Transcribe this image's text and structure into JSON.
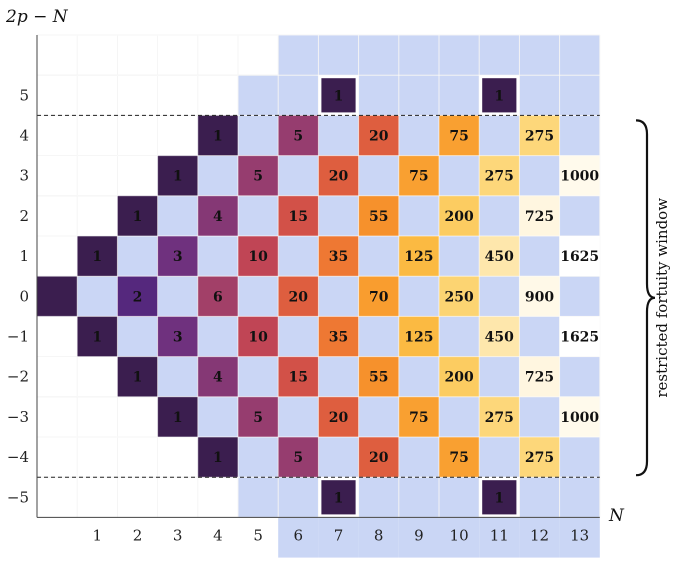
{
  "chart_data": {
    "type": "heatmap",
    "title": "",
    "xlabel": "N",
    "ylabel": "2p − N",
    "xlim": [
      0,
      13
    ],
    "ylim": [
      -5,
      5
    ],
    "x_ticks": [
      "1",
      "2",
      "3",
      "4",
      "5",
      "6",
      "7",
      "8",
      "9",
      "10",
      "11",
      "12",
      "13"
    ],
    "y_ticks": [
      "−5",
      "−4",
      "−3",
      "−2",
      "−1",
      "0",
      "1",
      "2",
      "3",
      "4",
      "5"
    ],
    "cells": [
      {
        "N": 0,
        "y": 0,
        "value": 1,
        "label": ""
      },
      {
        "N": 1,
        "y": 1,
        "value": 1,
        "label": "1"
      },
      {
        "N": 1,
        "y": -1,
        "value": 1,
        "label": "1"
      },
      {
        "N": 2,
        "y": 2,
        "value": 1,
        "label": "1"
      },
      {
        "N": 2,
        "y": 0,
        "value": 2,
        "label": "2"
      },
      {
        "N": 2,
        "y": -2,
        "value": 1,
        "label": "1"
      },
      {
        "N": 3,
        "y": 3,
        "value": 1,
        "label": "1"
      },
      {
        "N": 3,
        "y": 1,
        "value": 3,
        "label": "3"
      },
      {
        "N": 3,
        "y": -1,
        "value": 3,
        "label": "3"
      },
      {
        "N": 3,
        "y": -3,
        "value": 1,
        "label": "1"
      },
      {
        "N": 4,
        "y": 4,
        "value": 1,
        "label": "1"
      },
      {
        "N": 4,
        "y": 2,
        "value": 4,
        "label": "4"
      },
      {
        "N": 4,
        "y": 0,
        "value": 6,
        "label": "6"
      },
      {
        "N": 4,
        "y": -2,
        "value": 4,
        "label": "4"
      },
      {
        "N": 4,
        "y": -4,
        "value": 1,
        "label": "1"
      },
      {
        "N": 5,
        "y": 3,
        "value": 5,
        "label": "5"
      },
      {
        "N": 5,
        "y": 1,
        "value": 10,
        "label": "10"
      },
      {
        "N": 5,
        "y": -1,
        "value": 10,
        "label": "10"
      },
      {
        "N": 5,
        "y": -3,
        "value": 5,
        "label": "5"
      },
      {
        "N": 6,
        "y": 4,
        "value": 5,
        "label": "5"
      },
      {
        "N": 6,
        "y": 2,
        "value": 15,
        "label": "15"
      },
      {
        "N": 6,
        "y": 0,
        "value": 20,
        "label": "20"
      },
      {
        "N": 6,
        "y": -2,
        "value": 15,
        "label": "15"
      },
      {
        "N": 6,
        "y": -4,
        "value": 5,
        "label": "5"
      },
      {
        "N": 7,
        "y": 5,
        "value": 1,
        "label": "1",
        "boxed": true
      },
      {
        "N": 7,
        "y": 3,
        "value": 20,
        "label": "20"
      },
      {
        "N": 7,
        "y": 1,
        "value": 35,
        "label": "35"
      },
      {
        "N": 7,
        "y": -1,
        "value": 35,
        "label": "35"
      },
      {
        "N": 7,
        "y": -3,
        "value": 20,
        "label": "20"
      },
      {
        "N": 7,
        "y": -5,
        "value": 1,
        "label": "1",
        "boxed": true
      },
      {
        "N": 8,
        "y": 4,
        "value": 20,
        "label": "20"
      },
      {
        "N": 8,
        "y": 2,
        "value": 55,
        "label": "55"
      },
      {
        "N": 8,
        "y": 0,
        "value": 70,
        "label": "70"
      },
      {
        "N": 8,
        "y": -2,
        "value": 55,
        "label": "55"
      },
      {
        "N": 8,
        "y": -4,
        "value": 20,
        "label": "20"
      },
      {
        "N": 9,
        "y": 3,
        "value": 75,
        "label": "75"
      },
      {
        "N": 9,
        "y": 1,
        "value": 125,
        "label": "125"
      },
      {
        "N": 9,
        "y": -1,
        "value": 125,
        "label": "125"
      },
      {
        "N": 9,
        "y": -3,
        "value": 75,
        "label": "75"
      },
      {
        "N": 10,
        "y": 4,
        "value": 75,
        "label": "75"
      },
      {
        "N": 10,
        "y": 2,
        "value": 200,
        "label": "200"
      },
      {
        "N": 10,
        "y": 0,
        "value": 250,
        "label": "250"
      },
      {
        "N": 10,
        "y": -2,
        "value": 200,
        "label": "200"
      },
      {
        "N": 10,
        "y": -4,
        "value": 75,
        "label": "75"
      },
      {
        "N": 11,
        "y": 5,
        "value": 1,
        "label": "1",
        "boxed": true
      },
      {
        "N": 11,
        "y": 3,
        "value": 275,
        "label": "275"
      },
      {
        "N": 11,
        "y": 1,
        "value": 450,
        "label": "450"
      },
      {
        "N": 11,
        "y": -1,
        "value": 450,
        "label": "450"
      },
      {
        "N": 11,
        "y": -3,
        "value": 275,
        "label": "275"
      },
      {
        "N": 11,
        "y": -5,
        "value": 1,
        "label": "1",
        "boxed": true
      },
      {
        "N": 12,
        "y": 4,
        "value": 275,
        "label": "275"
      },
      {
        "N": 12,
        "y": 2,
        "value": 725,
        "label": "725"
      },
      {
        "N": 12,
        "y": 0,
        "value": 900,
        "label": "900"
      },
      {
        "N": 12,
        "y": -2,
        "value": 725,
        "label": "725"
      },
      {
        "N": 12,
        "y": -4,
        "value": 275,
        "label": "275"
      },
      {
        "N": 13,
        "y": 3,
        "value": 1000,
        "label": "1000"
      },
      {
        "N": 13,
        "y": 1,
        "value": 1625,
        "label": "1625"
      },
      {
        "N": 13,
        "y": -1,
        "value": 1625,
        "label": "1625"
      },
      {
        "N": 13,
        "y": -3,
        "value": 1000,
        "label": "1000"
      }
    ],
    "colormap": [
      "#3b1e4f",
      "#5a2a86",
      "#993e6e",
      "#c9474f",
      "#e96a37",
      "#f8962a",
      "#fbbf45",
      "#fddc84",
      "#fff6df",
      "#ffffff"
    ],
    "empty_cell_color": "#cad6f5",
    "restricted_window": {
      "y_min": -4,
      "y_max": 4,
      "label": "restricted fortuity window"
    },
    "grid": true
  }
}
